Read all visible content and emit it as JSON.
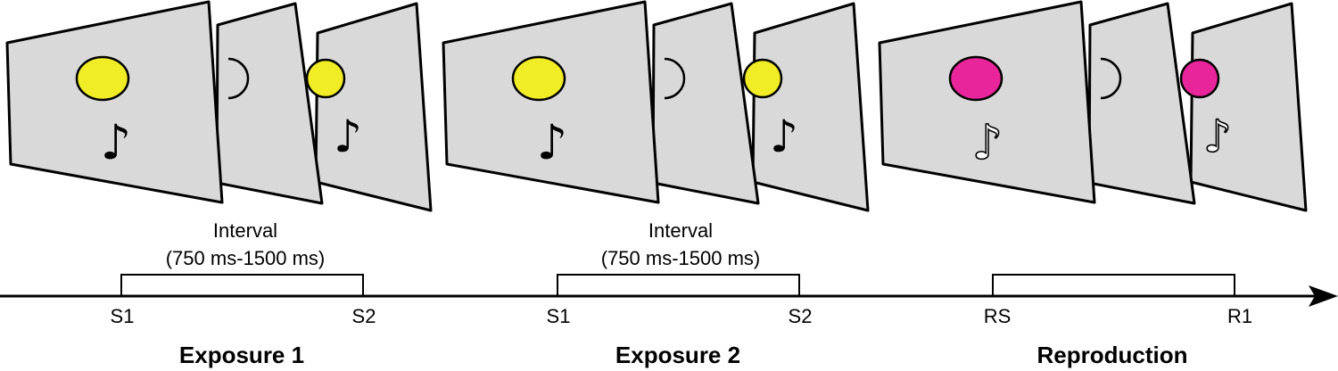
{
  "colors": {
    "screen_fill": "#d9d9d9",
    "stroke": "#000000",
    "background": "#ffffff",
    "stim_yellow": "#f0ec25",
    "stim_magenta": "#e8259a"
  },
  "icons": {
    "note_filled": "♪",
    "note_outline": "♪"
  },
  "phases": [
    {
      "title": "Exposure 1",
      "interval_label_line1": "Interval",
      "interval_label_line2": "(750 ms-1500 ms)",
      "start_label": "S1",
      "end_label": "S2",
      "stimulus_color": "yellow",
      "note_style": "filled"
    },
    {
      "title": "Exposure 2",
      "interval_label_line1": "Interval",
      "interval_label_line2": "(750 ms-1500 ms)",
      "start_label": "S1",
      "end_label": "S2",
      "stimulus_color": "yellow",
      "note_style": "filled"
    },
    {
      "title": "Reproduction",
      "interval_label_line1": "",
      "interval_label_line2": "",
      "start_label": "RS",
      "end_label": "R1",
      "stimulus_color": "magenta",
      "note_style": "outline"
    }
  ]
}
